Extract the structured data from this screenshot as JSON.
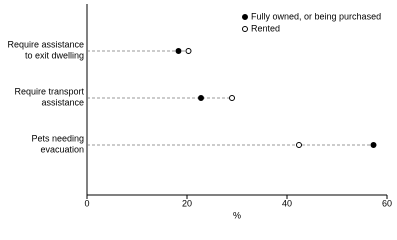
{
  "chart_data": {
    "type": "dot",
    "categories": [
      "Require assistance\nto exit dwelling",
      "Require transport\nassistance",
      "Pets needing\nevacuation"
    ],
    "series": [
      {
        "name": "Fully owned, or being purchased",
        "color": "#000000",
        "values": [
          18.3,
          22.8,
          57.3
        ]
      },
      {
        "name": "Rented",
        "color": "#ffffff",
        "values": [
          20.3,
          29,
          42.4
        ]
      }
    ],
    "xlabel": "%",
    "xlim": [
      0,
      60
    ],
    "xticks": [
      0,
      20,
      40,
      60
    ],
    "legend": "top-right"
  }
}
